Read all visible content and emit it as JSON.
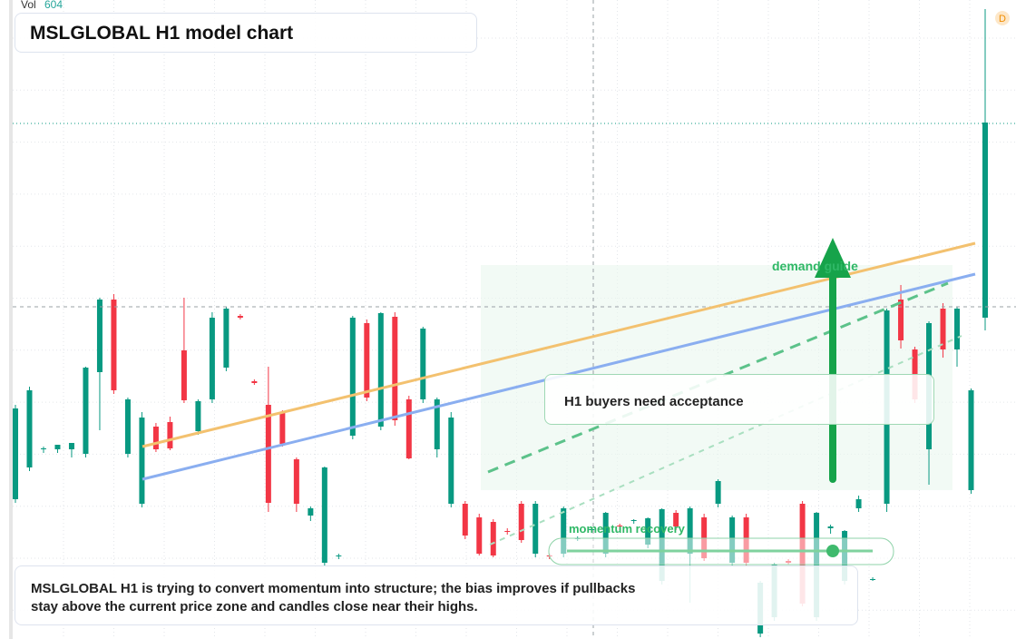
{
  "header": {
    "vol_label": "Vol",
    "vol_value": "604",
    "title": "MSLGLOBAL H1 model chart",
    "badge": "D"
  },
  "annotations": {
    "demand": "demand guide",
    "acceptance": "H1 buyers need acceptance",
    "momentum": "momentum recovery",
    "summary": "MSLGLOBAL H1 is trying to convert momentum into structure; the bias improves if pullbacks stay above the current price zone and candles close near their highs."
  },
  "chart_data": {
    "type": "candlestick",
    "up_color": "#089981",
    "down_color": "#f23645",
    "ylim": [
      0,
      704
    ],
    "candles": [
      [
        154,
        258,
        150,
        254
      ],
      [
        189,
        278,
        185,
        274
      ],
      [
        209,
        212,
        205,
        210
      ],
      [
        209,
        214,
        205,
        214
      ],
      [
        209,
        216,
        200,
        216
      ],
      [
        204,
        300,
        200,
        299
      ],
      [
        294,
        376,
        230,
        374
      ],
      [
        374,
        380,
        270,
        274
      ],
      [
        204,
        266,
        200,
        264
      ],
      [
        149,
        250,
        145,
        244
      ],
      [
        234,
        238,
        206,
        209
      ],
      [
        239,
        245,
        208,
        210
      ],
      [
        318,
        376,
        260,
        263
      ],
      [
        229,
        264,
        225,
        262
      ],
      [
        264,
        360,
        260,
        354
      ],
      [
        299,
        366,
        295,
        364
      ],
      [
        356,
        358,
        352,
        354
      ],
      [
        284,
        286,
        280,
        282
      ],
      [
        258,
        300,
        140,
        150
      ],
      [
        249,
        252,
        212,
        215
      ],
      [
        198,
        200,
        140,
        149
      ],
      [
        136,
        146,
        130,
        144
      ],
      [
        84,
        190,
        80,
        189
      ],
      [
        92,
        94,
        88,
        92
      ],
      [
        224,
        356,
        220,
        354
      ],
      [
        348,
        352,
        262,
        266
      ],
      [
        234,
        360,
        230,
        359
      ],
      [
        355,
        360,
        235,
        241
      ],
      [
        264,
        268,
        198,
        199
      ],
      [
        264,
        344,
        260,
        342
      ],
      [
        209,
        266,
        200,
        264
      ],
      [
        149,
        250,
        145,
        244
      ],
      [
        149,
        152,
        110,
        114
      ],
      [
        134,
        138,
        92,
        94
      ],
      [
        129,
        132,
        90,
        92
      ],
      [
        119,
        122,
        115,
        118
      ],
      [
        149,
        152,
        106,
        109
      ],
      [
        94,
        152,
        90,
        149
      ],
      [
        92,
        94,
        88,
        91
      ],
      [
        94,
        146,
        90,
        144
      ],
      [
        110,
        113,
        108,
        111
      ],
      [
        120,
        123,
        118,
        121
      ],
      [
        94,
        140,
        90,
        139
      ],
      [
        125,
        127,
        120,
        124
      ],
      [
        130,
        132,
        127,
        131
      ],
      [
        104,
        134,
        100,
        133
      ],
      [
        64,
        144,
        60,
        143
      ],
      [
        139,
        142,
        120,
        124
      ],
      [
        94,
        146,
        40,
        144
      ],
      [
        134,
        138,
        86,
        89
      ],
      [
        149,
        176,
        145,
        174
      ],
      [
        84,
        136,
        80,
        134
      ],
      [
        134,
        138,
        80,
        84
      ],
      [
        6,
        64,
        2,
        62
      ],
      [
        24,
        84,
        20,
        82
      ],
      [
        86,
        88,
        82,
        84
      ],
      [
        149,
        152,
        36,
        39
      ],
      [
        24,
        140,
        20,
        139
      ],
      [
        122,
        126,
        116,
        124
      ],
      [
        64,
        120,
        60,
        119
      ],
      [
        144,
        158,
        140,
        154
      ],
      [
        66,
        68,
        64,
        66
      ],
      [
        149,
        364,
        140,
        362
      ],
      [
        374,
        390,
        320,
        329
      ],
      [
        319,
        322,
        260,
        264
      ],
      [
        209,
        350,
        170,
        348
      ],
      [
        364,
        370,
        310,
        319
      ],
      [
        319,
        366,
        300,
        364
      ],
      [
        164,
        276,
        160,
        274
      ],
      [
        354,
        694,
        340,
        569
      ]
    ]
  }
}
